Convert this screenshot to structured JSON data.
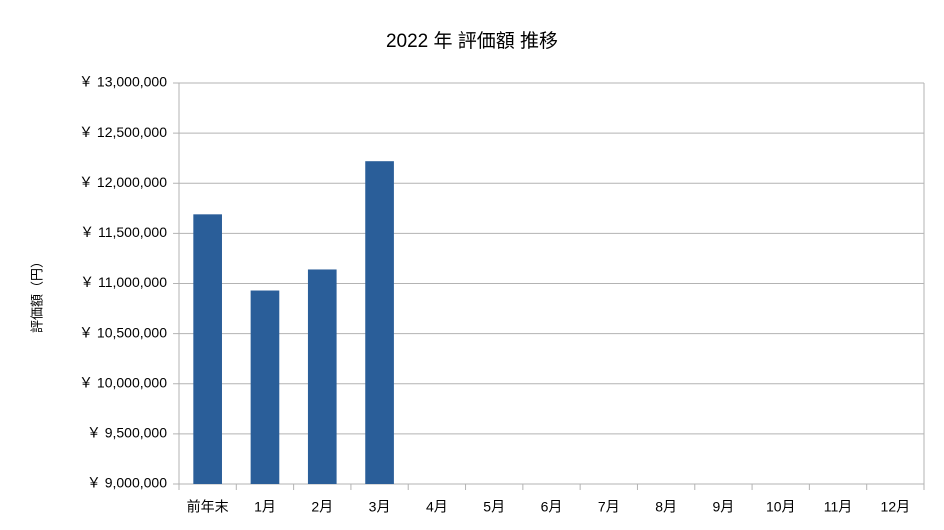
{
  "chart_data": {
    "type": "bar",
    "title": "2022 年 評価額 推移",
    "y_label": "評価額（円）",
    "categories": [
      "前年末",
      "1月",
      "2月",
      "3月",
      "4月",
      "5月",
      "6月",
      "7月",
      "8月",
      "9月",
      "10月",
      "11月",
      "12月"
    ],
    "values": [
      11690000,
      10930000,
      11140000,
      12220000,
      null,
      null,
      null,
      null,
      null,
      null,
      null,
      null,
      null
    ],
    "color": "#2a5e99",
    "ylim": [
      9000000,
      13000000
    ],
    "yticks": [
      {
        "value": 9000000,
        "label": "￥ 9,000,000"
      },
      {
        "value": 9500000,
        "label": "￥ 9,500,000"
      },
      {
        "value": 10000000,
        "label": "￥ 10,000,000"
      },
      {
        "value": 10500000,
        "label": "￥ 10,500,000"
      },
      {
        "value": 11000000,
        "label": "￥ 11,000,000"
      },
      {
        "value": 11500000,
        "label": "￥ 11,500,000"
      },
      {
        "value": 12000000,
        "label": "￥ 12,000,000"
      },
      {
        "value": 12500000,
        "label": "￥ 12,500,000"
      },
      {
        "value": 13000000,
        "label": "￥ 13,000,000"
      }
    ],
    "grid": true
  }
}
